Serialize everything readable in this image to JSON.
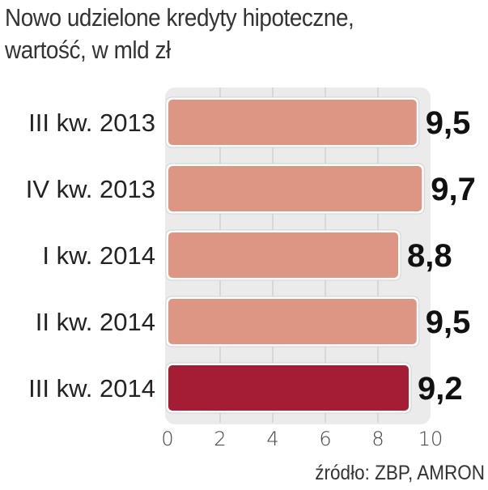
{
  "chart_data": {
    "type": "bar",
    "orientation": "horizontal",
    "title": [
      "Nowo udzielone kredyty hipoteczne,",
      "wartość, w mld zł"
    ],
    "categories": [
      "III kw. 2013",
      "IV kw. 2013",
      "I kw. 2014",
      "II kw. 2014",
      "III kw. 2014"
    ],
    "values": [
      9.5,
      9.7,
      8.8,
      9.5,
      9.2
    ],
    "value_labels": [
      "9,5",
      "9,7",
      "8,8",
      "9,5",
      "9,2"
    ],
    "xlim": [
      0,
      10
    ],
    "xticks": [
      "0",
      "2",
      "4",
      "6",
      "8",
      "10"
    ],
    "grid": true,
    "colors": {
      "default": "#dc9683",
      "highlight": "#a51d34",
      "background": "#ebebeb"
    },
    "highlight_index": 4,
    "source": "źródło: ZBP, AMRON"
  }
}
